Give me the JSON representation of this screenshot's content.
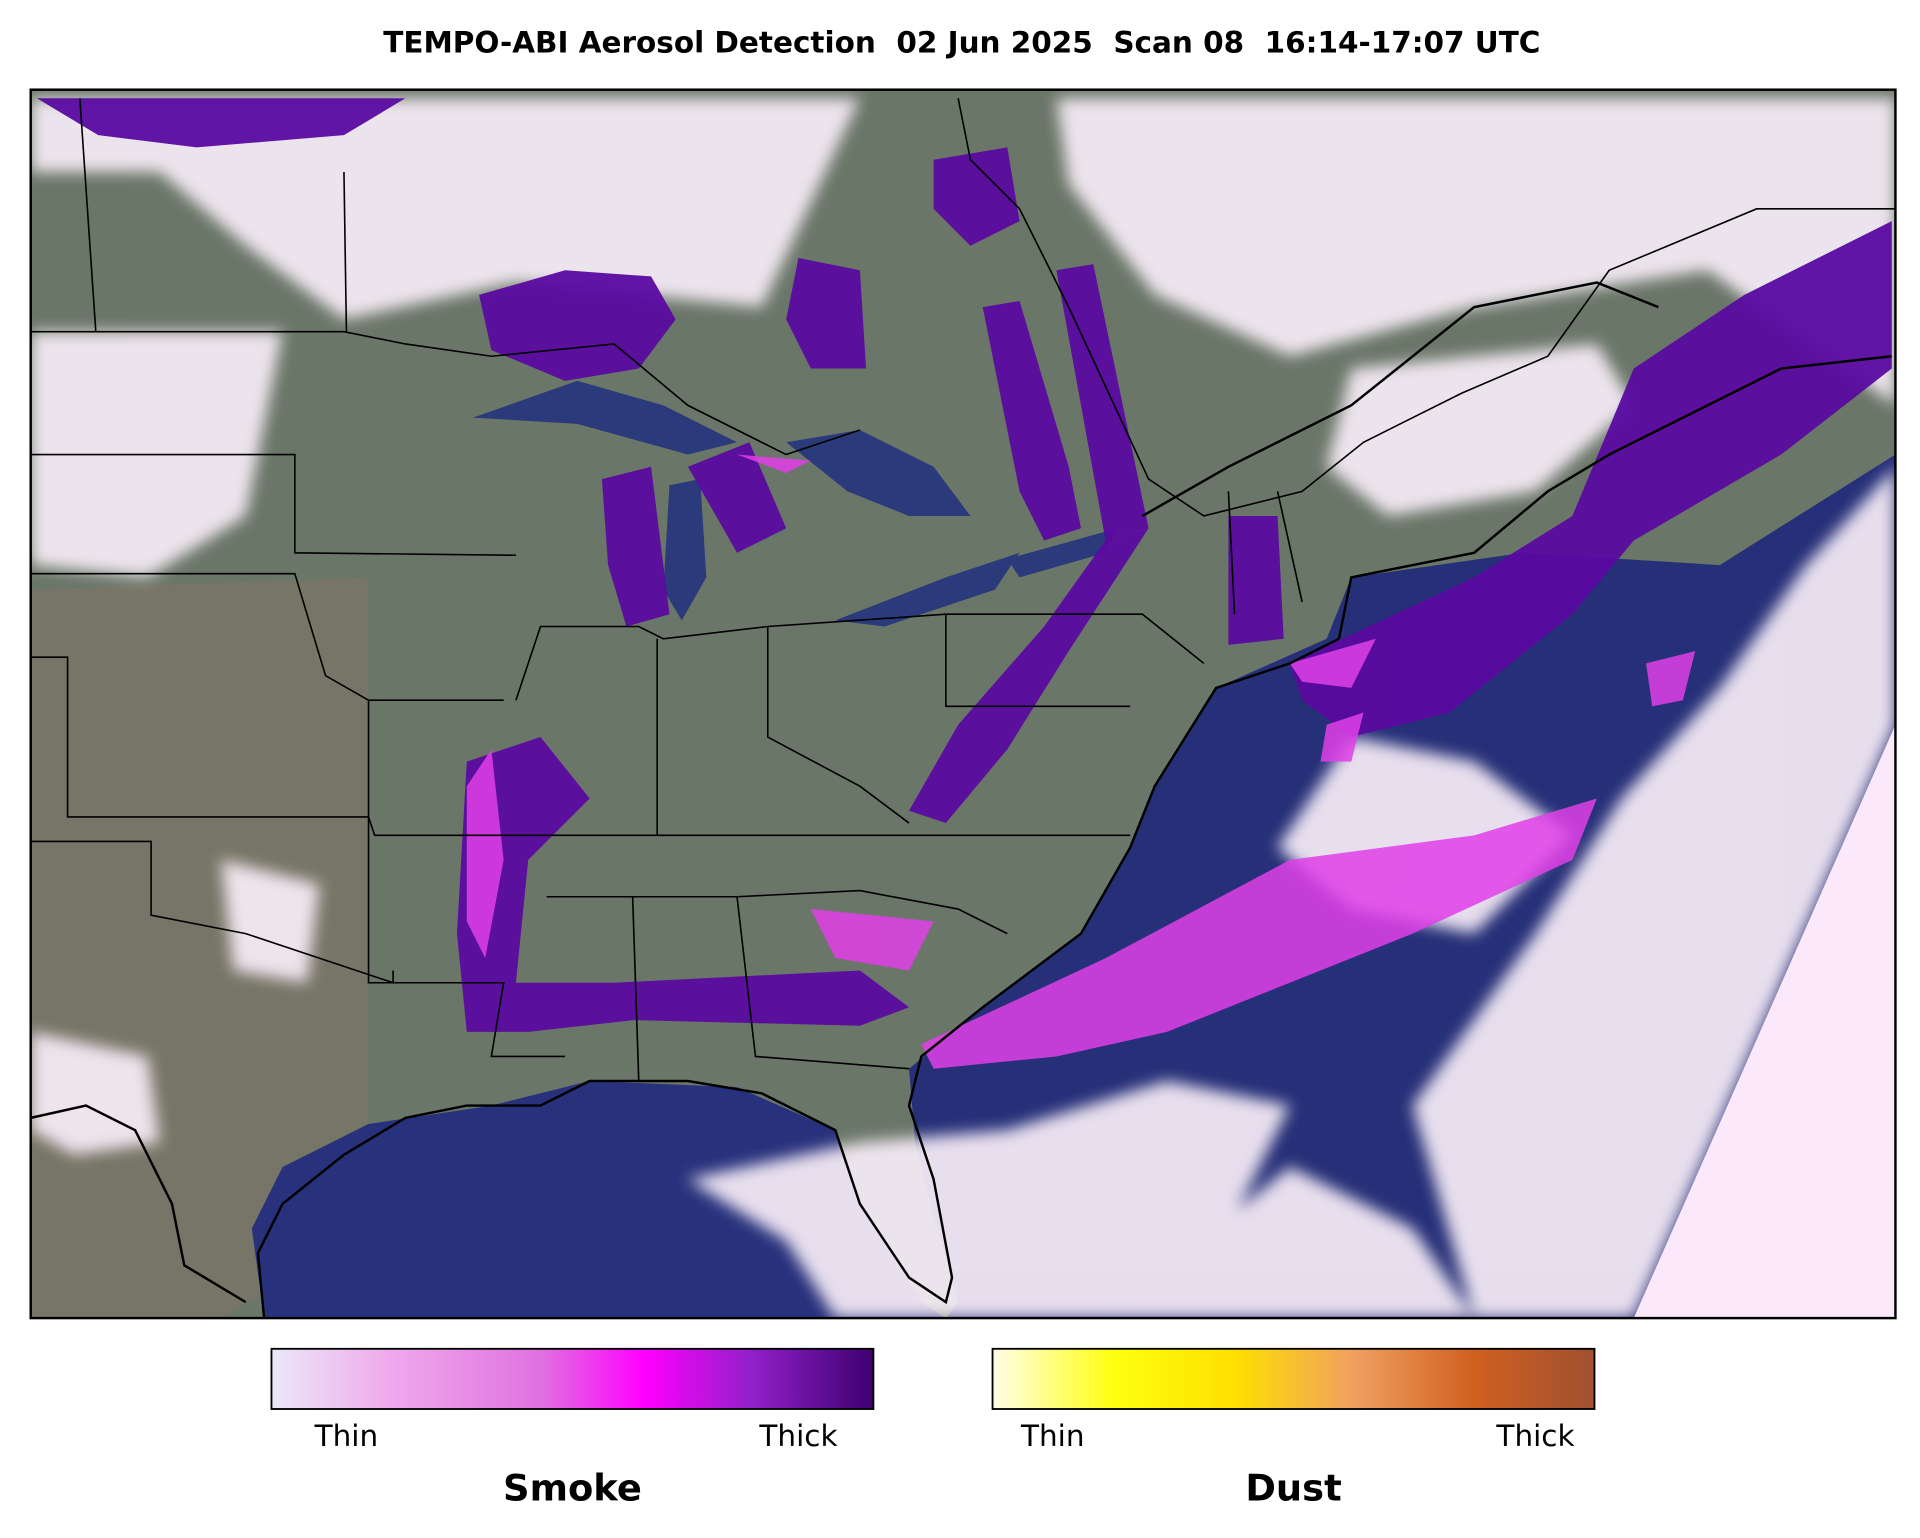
{
  "title": "TEMPO-ABI Aerosol Detection  02 Jun 2025  Scan 08  16:14-17:07 UTC",
  "legends": [
    {
      "name": "Smoke",
      "min_label": "Thin",
      "max_label": "Thick"
    },
    {
      "name": "Dust",
      "min_label": "Thin",
      "max_label": "Thick"
    }
  ]
}
